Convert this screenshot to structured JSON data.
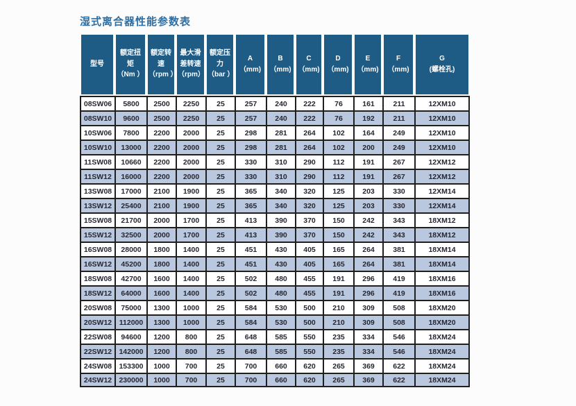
{
  "page": {
    "title": "湿式离合器性能参数表"
  },
  "table": {
    "columns": [
      [
        "型号"
      ],
      [
        "额定扭",
        "矩",
        "（Nm ）"
      ],
      [
        "额定转",
        "速",
        "（rpm ）"
      ],
      [
        "最大滑",
        "差转速",
        "（rpm）"
      ],
      [
        "额定压",
        "力",
        "（bar ）"
      ],
      [
        "A",
        "（mm)"
      ],
      [
        "B",
        "（mm)"
      ],
      [
        "C",
        "（mm)"
      ],
      [
        "D",
        "（mm)"
      ],
      [
        "E",
        "（mm)"
      ],
      [
        "F",
        "（mm)"
      ],
      [
        "G",
        "(螺栓孔)"
      ]
    ],
    "rows": [
      [
        "08SW06",
        "5800",
        "2500",
        "2250",
        "25",
        "257",
        "240",
        "222",
        "76",
        "161",
        "211",
        "12XM10"
      ],
      [
        "08SW10",
        "9600",
        "2500",
        "2250",
        "25",
        "257",
        "240",
        "222",
        "76",
        "192",
        "211",
        "12XM10"
      ],
      [
        "10SW06",
        "7800",
        "2200",
        "2000",
        "25",
        "298",
        "281",
        "264",
        "102",
        "164",
        "249",
        "12XM10"
      ],
      [
        "10SW10",
        "13000",
        "2200",
        "2000",
        "25",
        "298",
        "281",
        "264",
        "102",
        "200",
        "249",
        "12XM10"
      ],
      [
        "11SW08",
        "10660",
        "2200",
        "2000",
        "25",
        "330",
        "310",
        "290",
        "112",
        "191",
        "267",
        "12XM12"
      ],
      [
        "11SW12",
        "16000",
        "2200",
        "2000",
        "25",
        "330",
        "310",
        "290",
        "112",
        "191",
        "267",
        "12XM12"
      ],
      [
        "13SW08",
        "17000",
        "2100",
        "1900",
        "25",
        "365",
        "340",
        "320",
        "125",
        "203",
        "330",
        "12XM14"
      ],
      [
        "13SW12",
        "25400",
        "2100",
        "1900",
        "25",
        "365",
        "340",
        "320",
        "125",
        "203",
        "330",
        "12XM14"
      ],
      [
        "15SW08",
        "21700",
        "2000",
        "1700",
        "25",
        "413",
        "390",
        "370",
        "150",
        "242",
        "343",
        "18XM12"
      ],
      [
        "15SW12",
        "32500",
        "2000",
        "1700",
        "25",
        "413",
        "390",
        "370",
        "150",
        "242",
        "343",
        "18XM12"
      ],
      [
        "16SW08",
        "28000",
        "1800",
        "1400",
        "25",
        "451",
        "430",
        "405",
        "165",
        "264",
        "381",
        "18XM14"
      ],
      [
        "16SW12",
        "45200",
        "1800",
        "1400",
        "25",
        "451",
        "430",
        "405",
        "165",
        "264",
        "381",
        "18XM14"
      ],
      [
        "18SW08",
        "42700",
        "1600",
        "1400",
        "25",
        "502",
        "480",
        "455",
        "191",
        "296",
        "419",
        "18XM16"
      ],
      [
        "18SW12",
        "64000",
        "1600",
        "1400",
        "25",
        "502",
        "480",
        "455",
        "191",
        "296",
        "419",
        "18XM16"
      ],
      [
        "20SW08",
        "75000",
        "1300",
        "1000",
        "25",
        "584",
        "530",
        "500",
        "210",
        "309",
        "508",
        "18XM20"
      ],
      [
        "20SW12",
        "112000",
        "1300",
        "1000",
        "25",
        "584",
        "530",
        "500",
        "210",
        "309",
        "508",
        "18XM20"
      ],
      [
        "22SW08",
        "94600",
        "1200",
        "800",
        "25",
        "648",
        "585",
        "550",
        "235",
        "334",
        "546",
        "18XM24"
      ],
      [
        "22SW12",
        "142000",
        "1200",
        "800",
        "25",
        "648",
        "585",
        "550",
        "235",
        "334",
        "546",
        "18XM24"
      ],
      [
        "24SW08",
        "153300",
        "1000",
        "700",
        "25",
        "700",
        "660",
        "620",
        "265",
        "369",
        "622",
        "18XM24"
      ],
      [
        "24SW12",
        "230000",
        "1000",
        "700",
        "25",
        "700",
        "660",
        "620",
        "265",
        "369",
        "622",
        "18XM24"
      ]
    ],
    "colors": {
      "header_bg": "#1e5b85",
      "stripe_bg": "#b9c8de",
      "title_text": "#2d6ea3",
      "grid_line": "#1f1f1f",
      "header_text": "#ffffff",
      "body_text": "#262630"
    }
  }
}
